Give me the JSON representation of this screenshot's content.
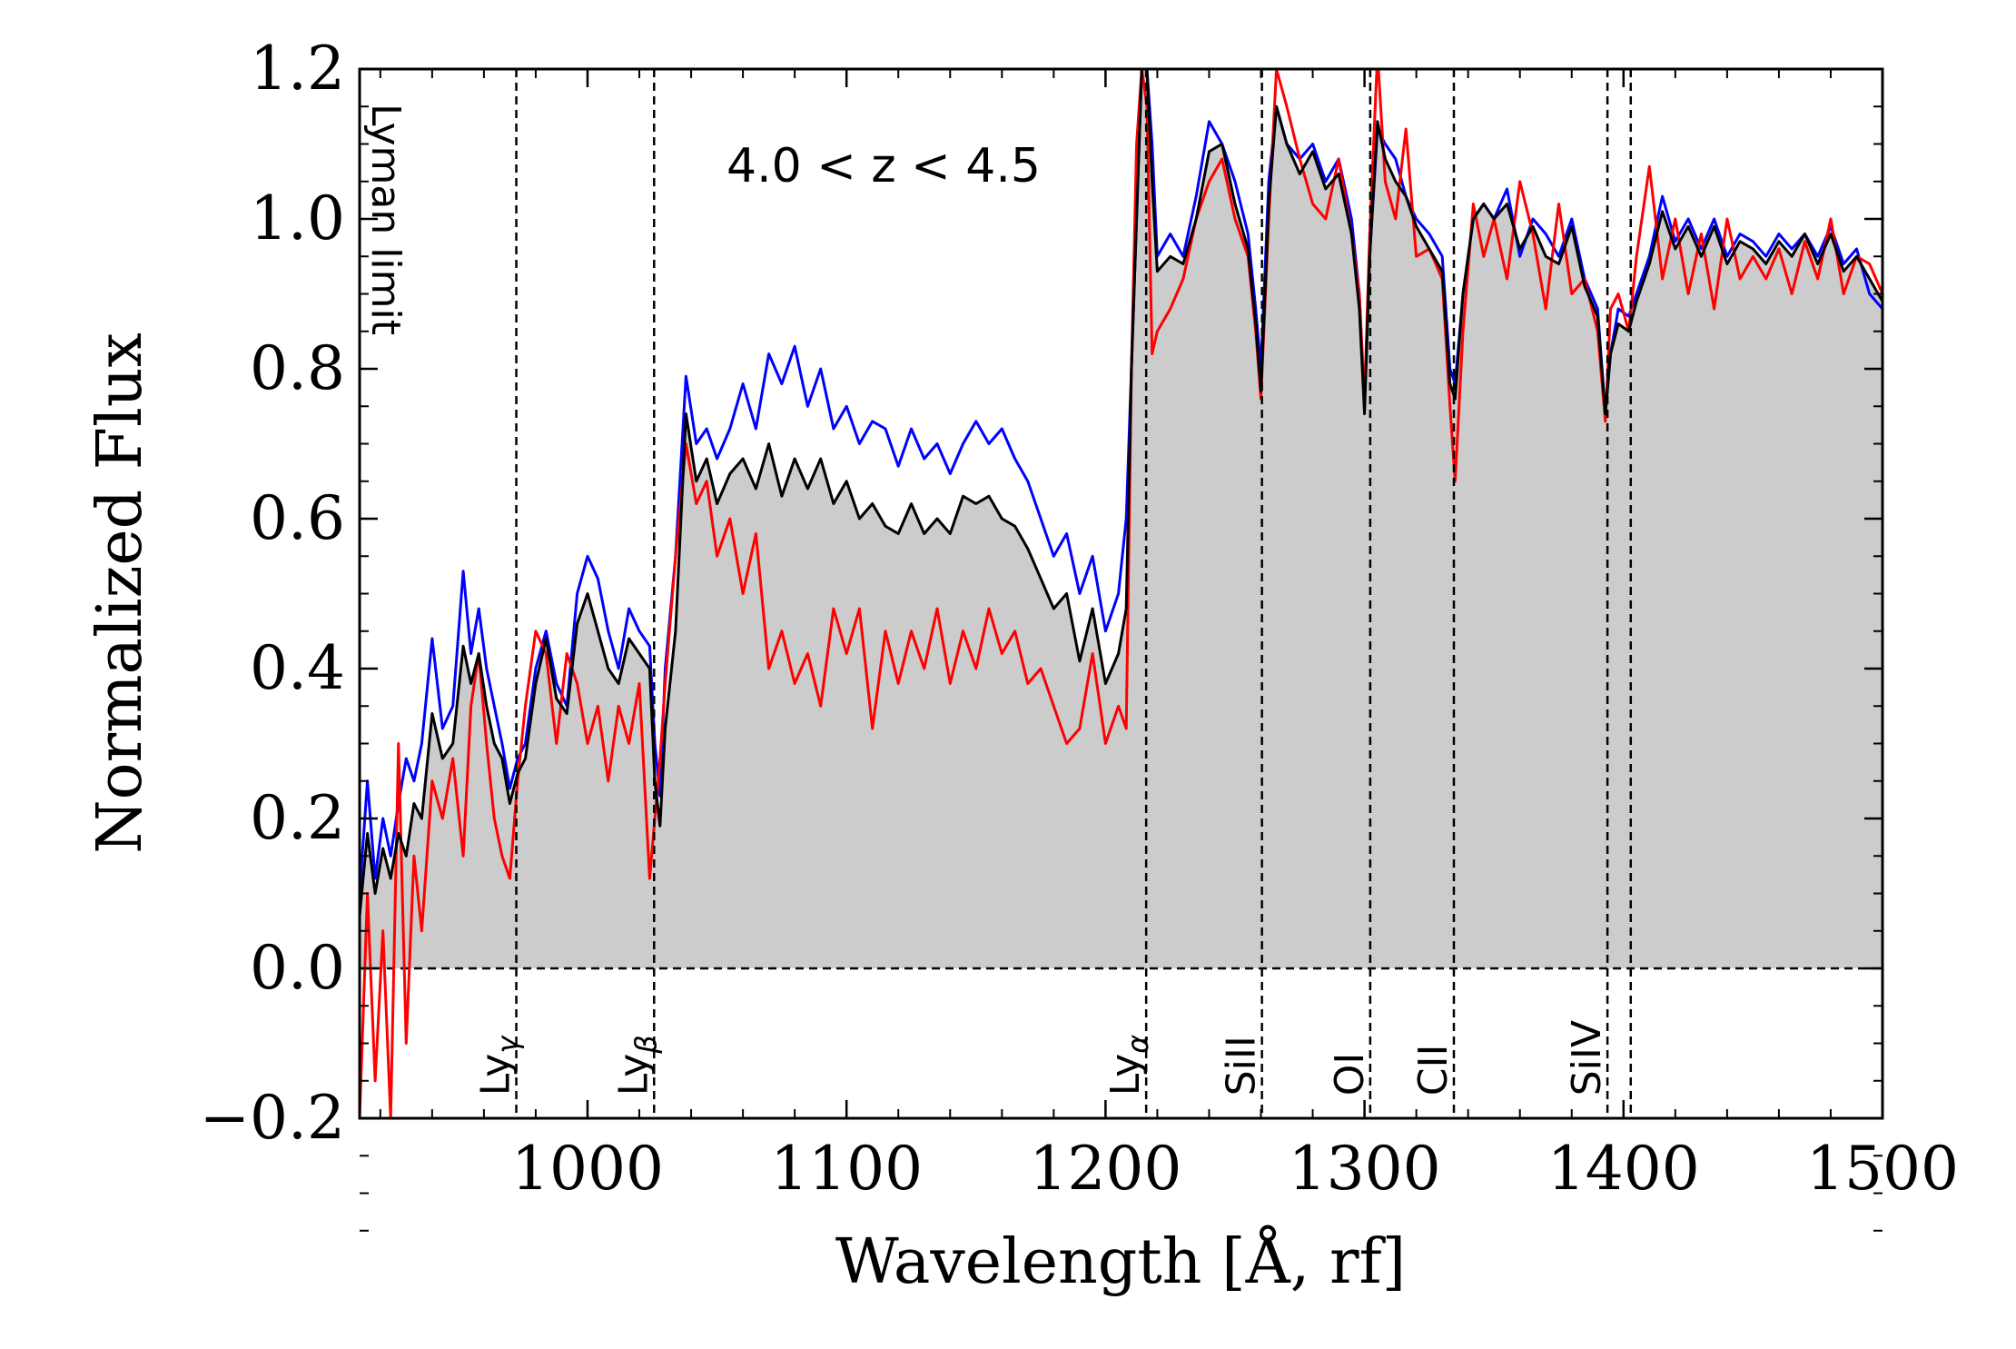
{
  "chart_data": {
    "type": "line",
    "xlabel": "Wavelength [Å, rf]",
    "ylabel": "Normalized Flux",
    "annotation": "4.0 < z < 4.5",
    "xlim": [
      912,
      1500
    ],
    "ylim": [
      -0.2,
      1.2
    ],
    "x_ticks": [
      "1000",
      "1100",
      "1200",
      "1300",
      "1400",
      "1500"
    ],
    "y_ticks": [
      "1.2",
      "1.0",
      "0.8",
      "0.6",
      "0.4",
      "0.2",
      "0.0",
      "−0.2"
    ],
    "x_tick_values": [
      1000,
      1100,
      1200,
      1300,
      1400,
      1500
    ],
    "y_tick_values": [
      1.2,
      1.0,
      0.8,
      0.6,
      0.4,
      0.2,
      0.0,
      -0.2
    ],
    "zero_line": 0.0,
    "fill_series": "black",
    "colors": {
      "blue": "#0000ff",
      "black": "#000000",
      "red": "#ff0000",
      "fill": "#cccccc"
    },
    "lines": [
      {
        "label": "Lyman limit",
        "x": 912,
        "label_pos": "top-rotated"
      },
      {
        "label": "Lyγ",
        "x": 972.5,
        "label_pos": "bottom-rotated"
      },
      {
        "label": "Lyβ",
        "x": 1025.7,
        "label_pos": "bottom-rotated"
      },
      {
        "label": "Lyα",
        "x": 1215.7,
        "label_pos": "bottom-rotated"
      },
      {
        "label": "SiII",
        "x": 1260.4,
        "label_pos": "bottom-rotated"
      },
      {
        "label": "OI",
        "x": 1302.2,
        "label_pos": "bottom-rotated"
      },
      {
        "label": "CII",
        "x": 1334.5,
        "label_pos": "bottom-rotated"
      },
      {
        "label": "SiIV",
        "x": 1393.8,
        "label_pos": "bottom-rotated"
      },
      {
        "label": "",
        "x": 1402.8,
        "label_pos": "none"
      }
    ],
    "series": [
      {
        "color": "blue",
        "x": [
          912,
          915,
          918,
          921,
          924,
          927,
          930,
          933,
          936,
          940,
          944,
          948,
          952,
          955,
          958,
          961,
          964,
          967,
          970,
          973,
          976,
          980,
          984,
          988,
          992,
          996,
          1000,
          1004,
          1008,
          1012,
          1016,
          1020,
          1024,
          1026,
          1028,
          1030,
          1034,
          1038,
          1042,
          1046,
          1050,
          1055,
          1060,
          1065,
          1070,
          1075,
          1080,
          1085,
          1090,
          1095,
          1100,
          1105,
          1110,
          1115,
          1120,
          1125,
          1130,
          1135,
          1140,
          1145,
          1150,
          1155,
          1160,
          1165,
          1170,
          1175,
          1180,
          1185,
          1190,
          1195,
          1200,
          1205,
          1208,
          1210,
          1212,
          1214,
          1216,
          1218,
          1220,
          1225,
          1230,
          1235,
          1240,
          1245,
          1250,
          1255,
          1258,
          1260,
          1263,
          1266,
          1270,
          1275,
          1280,
          1285,
          1290,
          1295,
          1298,
          1300,
          1302,
          1305,
          1308,
          1312,
          1316,
          1320,
          1325,
          1330,
          1333,
          1335,
          1338,
          1342,
          1346,
          1350,
          1355,
          1360,
          1365,
          1370,
          1375,
          1380,
          1385,
          1390,
          1393,
          1395,
          1398,
          1402,
          1405,
          1410,
          1415,
          1420,
          1425,
          1430,
          1435,
          1440,
          1445,
          1450,
          1455,
          1460,
          1465,
          1470,
          1475,
          1480,
          1485,
          1490,
          1495,
          1500
        ],
        "y": [
          0.1,
          0.25,
          0.12,
          0.2,
          0.15,
          0.22,
          0.28,
          0.25,
          0.3,
          0.44,
          0.32,
          0.35,
          0.53,
          0.42,
          0.48,
          0.4,
          0.35,
          0.3,
          0.24,
          0.28,
          0.3,
          0.4,
          0.45,
          0.38,
          0.35,
          0.5,
          0.55,
          0.52,
          0.45,
          0.4,
          0.48,
          0.45,
          0.43,
          0.3,
          0.23,
          0.4,
          0.55,
          0.79,
          0.7,
          0.72,
          0.68,
          0.72,
          0.78,
          0.72,
          0.82,
          0.78,
          0.83,
          0.75,
          0.8,
          0.72,
          0.75,
          0.7,
          0.73,
          0.72,
          0.67,
          0.72,
          0.68,
          0.7,
          0.66,
          0.7,
          0.73,
          0.7,
          0.72,
          0.68,
          0.65,
          0.6,
          0.55,
          0.58,
          0.5,
          0.55,
          0.45,
          0.5,
          0.6,
          0.8,
          1.0,
          1.2,
          1.2,
          1.1,
          0.95,
          0.98,
          0.95,
          1.03,
          1.13,
          1.1,
          1.05,
          0.98,
          0.88,
          0.8,
          1.05,
          1.15,
          1.1,
          1.08,
          1.1,
          1.05,
          1.08,
          1.0,
          0.9,
          0.75,
          0.95,
          1.12,
          1.1,
          1.08,
          1.03,
          1.0,
          0.98,
          0.95,
          0.8,
          0.78,
          0.9,
          1.0,
          1.02,
          1.0,
          1.04,
          0.95,
          1.0,
          0.98,
          0.95,
          1.0,
          0.92,
          0.88,
          0.74,
          0.82,
          0.88,
          0.87,
          0.9,
          0.95,
          1.03,
          0.97,
          1.0,
          0.96,
          1.0,
          0.95,
          0.98,
          0.97,
          0.95,
          0.98,
          0.96,
          0.98,
          0.95,
          0.99,
          0.94,
          0.96,
          0.9,
          0.88
        ]
      },
      {
        "color": "red",
        "x": [
          912,
          915,
          918,
          921,
          924,
          927,
          930,
          933,
          936,
          940,
          944,
          948,
          952,
          955,
          958,
          961,
          964,
          967,
          970,
          973,
          976,
          980,
          984,
          988,
          992,
          996,
          1000,
          1004,
          1008,
          1012,
          1016,
          1020,
          1024,
          1026,
          1028,
          1030,
          1034,
          1038,
          1042,
          1046,
          1050,
          1055,
          1060,
          1065,
          1070,
          1075,
          1080,
          1085,
          1090,
          1095,
          1100,
          1105,
          1110,
          1115,
          1120,
          1125,
          1130,
          1135,
          1140,
          1145,
          1150,
          1155,
          1160,
          1165,
          1170,
          1175,
          1180,
          1185,
          1190,
          1195,
          1200,
          1205,
          1208,
          1210,
          1212,
          1214,
          1216,
          1218,
          1220,
          1225,
          1230,
          1235,
          1240,
          1245,
          1250,
          1255,
          1258,
          1260,
          1263,
          1266,
          1270,
          1275,
          1280,
          1285,
          1290,
          1295,
          1298,
          1300,
          1302,
          1305,
          1308,
          1312,
          1316,
          1320,
          1325,
          1330,
          1333,
          1335,
          1338,
          1342,
          1346,
          1350,
          1355,
          1360,
          1365,
          1370,
          1375,
          1380,
          1385,
          1390,
          1393,
          1395,
          1398,
          1402,
          1405,
          1410,
          1415,
          1420,
          1425,
          1430,
          1435,
          1440,
          1445,
          1450,
          1455,
          1460,
          1465,
          1470,
          1475,
          1480,
          1485,
          1490,
          1495,
          1500
        ],
        "y": [
          -0.2,
          0.1,
          -0.15,
          0.05,
          -0.2,
          0.3,
          -0.1,
          0.15,
          0.05,
          0.25,
          0.2,
          0.28,
          0.15,
          0.35,
          0.42,
          0.3,
          0.2,
          0.15,
          0.12,
          0.25,
          0.35,
          0.45,
          0.42,
          0.3,
          0.42,
          0.38,
          0.3,
          0.35,
          0.25,
          0.35,
          0.3,
          0.38,
          0.12,
          0.2,
          0.28,
          0.38,
          0.55,
          0.7,
          0.62,
          0.65,
          0.55,
          0.6,
          0.5,
          0.58,
          0.4,
          0.45,
          0.38,
          0.42,
          0.35,
          0.48,
          0.42,
          0.48,
          0.32,
          0.45,
          0.38,
          0.45,
          0.4,
          0.48,
          0.38,
          0.45,
          0.4,
          0.48,
          0.42,
          0.45,
          0.38,
          0.4,
          0.35,
          0.3,
          0.32,
          0.42,
          0.3,
          0.35,
          0.32,
          0.8,
          1.1,
          1.2,
          1.15,
          0.82,
          0.85,
          0.88,
          0.92,
          1.0,
          1.05,
          1.08,
          1.0,
          0.95,
          0.85,
          0.76,
          1.0,
          1.2,
          1.15,
          1.08,
          1.02,
          1.0,
          1.08,
          0.98,
          0.9,
          0.76,
          0.98,
          1.22,
          1.05,
          1.0,
          1.12,
          0.95,
          0.96,
          0.92,
          0.75,
          0.65,
          0.85,
          1.02,
          0.95,
          1.0,
          0.92,
          1.05,
          0.98,
          0.88,
          1.02,
          0.9,
          0.92,
          0.85,
          0.73,
          0.88,
          0.9,
          0.85,
          0.95,
          1.07,
          0.92,
          1.0,
          0.9,
          0.98,
          0.88,
          1.0,
          0.92,
          0.95,
          0.92,
          0.96,
          0.9,
          0.97,
          0.92,
          1.0,
          0.9,
          0.95,
          0.94,
          0.9
        ]
      },
      {
        "color": "black",
        "x": [
          912,
          915,
          918,
          921,
          924,
          927,
          930,
          933,
          936,
          940,
          944,
          948,
          952,
          955,
          958,
          961,
          964,
          967,
          970,
          973,
          976,
          980,
          984,
          988,
          992,
          996,
          1000,
          1004,
          1008,
          1012,
          1016,
          1020,
          1024,
          1026,
          1028,
          1030,
          1034,
          1038,
          1042,
          1046,
          1050,
          1055,
          1060,
          1065,
          1070,
          1075,
          1080,
          1085,
          1090,
          1095,
          1100,
          1105,
          1110,
          1115,
          1120,
          1125,
          1130,
          1135,
          1140,
          1145,
          1150,
          1155,
          1160,
          1165,
          1170,
          1175,
          1180,
          1185,
          1190,
          1195,
          1200,
          1205,
          1208,
          1210,
          1212,
          1214,
          1216,
          1218,
          1220,
          1225,
          1230,
          1235,
          1240,
          1245,
          1250,
          1255,
          1258,
          1260,
          1263,
          1266,
          1270,
          1275,
          1280,
          1285,
          1290,
          1295,
          1298,
          1300,
          1302,
          1305,
          1308,
          1312,
          1316,
          1320,
          1325,
          1330,
          1333,
          1335,
          1338,
          1342,
          1346,
          1350,
          1355,
          1360,
          1365,
          1370,
          1375,
          1380,
          1385,
          1390,
          1393,
          1395,
          1398,
          1402,
          1405,
          1410,
          1415,
          1420,
          1425,
          1430,
          1435,
          1440,
          1445,
          1450,
          1455,
          1460,
          1465,
          1470,
          1475,
          1480,
          1485,
          1490,
          1495,
          1500
        ],
        "y": [
          0.07,
          0.18,
          0.1,
          0.16,
          0.12,
          0.18,
          0.15,
          0.22,
          0.2,
          0.34,
          0.28,
          0.3,
          0.43,
          0.38,
          0.42,
          0.35,
          0.3,
          0.28,
          0.22,
          0.26,
          0.28,
          0.38,
          0.44,
          0.36,
          0.34,
          0.46,
          0.5,
          0.45,
          0.4,
          0.38,
          0.44,
          0.42,
          0.4,
          0.25,
          0.19,
          0.32,
          0.45,
          0.74,
          0.65,
          0.68,
          0.62,
          0.66,
          0.68,
          0.64,
          0.7,
          0.63,
          0.68,
          0.64,
          0.68,
          0.62,
          0.65,
          0.6,
          0.62,
          0.59,
          0.58,
          0.62,
          0.58,
          0.6,
          0.58,
          0.63,
          0.62,
          0.63,
          0.6,
          0.59,
          0.56,
          0.52,
          0.48,
          0.5,
          0.41,
          0.48,
          0.38,
          0.42,
          0.48,
          0.8,
          1.0,
          1.2,
          1.2,
          1.05,
          0.93,
          0.95,
          0.94,
          1.0,
          1.09,
          1.1,
          1.02,
          0.96,
          0.86,
          0.77,
          1.02,
          1.15,
          1.1,
          1.06,
          1.09,
          1.04,
          1.06,
          0.98,
          0.88,
          0.74,
          0.95,
          1.13,
          1.08,
          1.05,
          1.03,
          0.99,
          0.96,
          0.93,
          0.78,
          0.76,
          0.9,
          1.0,
          1.02,
          1.0,
          1.02,
          0.96,
          0.99,
          0.95,
          0.94,
          0.99,
          0.91,
          0.87,
          0.74,
          0.82,
          0.86,
          0.85,
          0.89,
          0.94,
          1.01,
          0.96,
          0.99,
          0.95,
          0.99,
          0.94,
          0.97,
          0.96,
          0.94,
          0.97,
          0.95,
          0.98,
          0.94,
          0.98,
          0.93,
          0.95,
          0.92,
          0.89
        ]
      }
    ]
  }
}
